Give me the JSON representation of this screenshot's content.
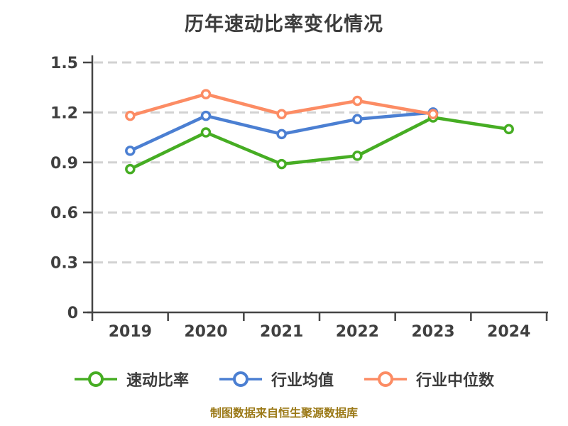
{
  "title": "历年速动比率变化情况",
  "caption": "制图数据来自恒生聚源数据库",
  "colors": {
    "title_text": "#3c3c3c",
    "axis_text": "#3f3f3f",
    "axis_line": "#454545",
    "gridline": "#d2d2d2",
    "marker_fill": "#ffffff",
    "caption_text": "#9b7917",
    "quick_ratio_green": "#46ad23",
    "industry_mean_blue": "#4b7fd2",
    "industry_median_orange": "#fc8c64"
  },
  "chart_data": {
    "type": "line",
    "title": "历年速动比率变化情况",
    "categories": [
      "2019",
      "2020",
      "2021",
      "2022",
      "2023",
      "2024"
    ],
    "series": [
      {
        "name": "速动比率",
        "color": "#46ad23",
        "values": [
          0.86,
          1.08,
          0.89,
          0.94,
          1.17,
          1.1
        ]
      },
      {
        "name": "行业均值",
        "color": "#4b7fd2",
        "values": [
          0.97,
          1.18,
          1.07,
          1.16,
          1.2,
          null
        ]
      },
      {
        "name": "行业中位数",
        "color": "#fc8c64",
        "values": [
          1.18,
          1.31,
          1.19,
          1.27,
          1.19,
          null
        ]
      }
    ],
    "xlabel": "",
    "ylabel": "",
    "ylim": [
      0,
      1.5
    ],
    "yticks": [
      0,
      0.3,
      0.6,
      0.9,
      1.2,
      1.5
    ],
    "grid": "horizontal-dashed",
    "legend_position": "bottom",
    "marker": "circle-white-fill"
  }
}
